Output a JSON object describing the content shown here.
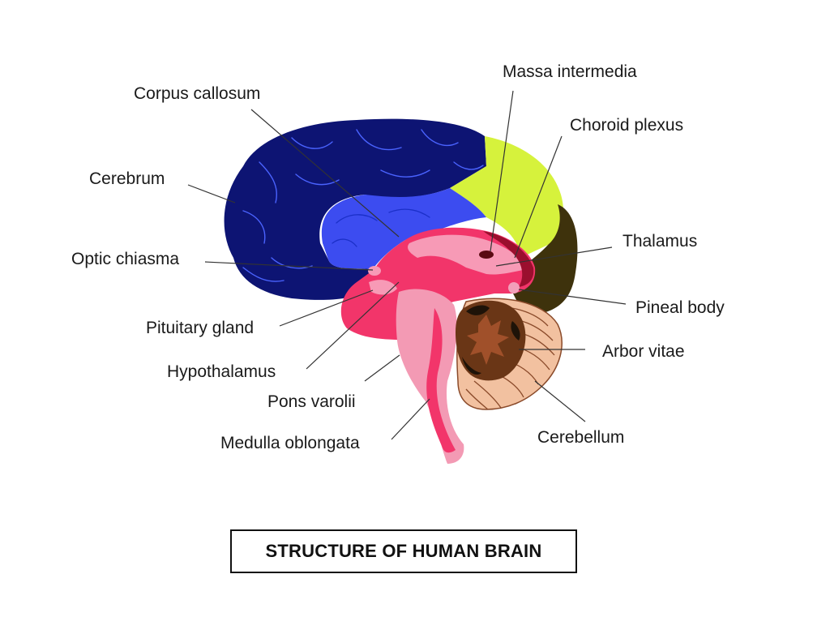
{
  "title": "STRUCTURE OF HUMAN BRAIN",
  "colors": {
    "cerebrum": "#0d1473",
    "corpus_callosum": "#3c4cf0",
    "parietal_region": "#d6f23c",
    "occipital_region": "#3e320c",
    "midbrain": "#f2356a",
    "brainstem": "#f39ab4",
    "cerebellum": "#f2c1a0",
    "arbor_vitae": "#6a3616"
  },
  "labels": {
    "massa_intermedia": "Massa intermedia",
    "corpus_callosum": "Corpus callosum",
    "choroid_plexus": "Choroid plexus",
    "cerebrum": "Cerebrum",
    "thalamus": "Thalamus",
    "optic_chiasma": "Optic chiasma",
    "pineal_body": "Pineal body",
    "pituitary_gland": "Pituitary gland",
    "arbor_vitae": "Arbor vitae",
    "hypothalamus": "Hypothalamus",
    "pons_varolii": "Pons varolii",
    "cerebellum": "Cerebellum",
    "medulla_oblongata": "Medulla oblongata"
  }
}
